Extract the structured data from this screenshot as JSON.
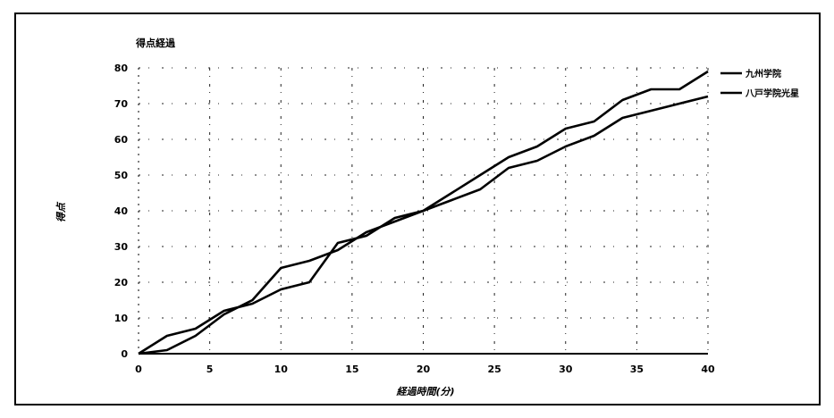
{
  "chart_data": {
    "type": "line",
    "title": "得点経過",
    "xlabel": "経過時間(分)",
    "ylabel": "得点",
    "xlim": [
      0,
      40
    ],
    "ylim": [
      0,
      80
    ],
    "xticks": [
      0,
      5,
      10,
      15,
      20,
      25,
      30,
      35,
      40
    ],
    "yticks": [
      0,
      10,
      20,
      30,
      40,
      50,
      60,
      70,
      80
    ],
    "grid": true,
    "legend_position": "right",
    "series": [
      {
        "name": "九州学院",
        "color": "#000000",
        "x": [
          0,
          2,
          4,
          6,
          8,
          10,
          12,
          14,
          16,
          18,
          20,
          22,
          24,
          26,
          28,
          30,
          32,
          34,
          36,
          38,
          40
        ],
        "y": [
          0,
          1,
          5,
          11,
          15,
          24,
          26,
          29,
          34,
          37,
          40,
          45,
          50,
          55,
          58,
          63,
          65,
          71,
          74,
          74,
          79
        ]
      },
      {
        "name": "八戸学院光星",
        "color": "#000000",
        "x": [
          0,
          2,
          4,
          6,
          8,
          10,
          12,
          14,
          16,
          18,
          20,
          22,
          24,
          26,
          28,
          30,
          32,
          34,
          36,
          38,
          40
        ],
        "y": [
          0,
          5,
          7,
          12,
          14,
          18,
          20,
          31,
          33,
          38,
          40,
          43,
          46,
          52,
          54,
          58,
          61,
          66,
          68,
          70,
          72
        ]
      }
    ]
  }
}
